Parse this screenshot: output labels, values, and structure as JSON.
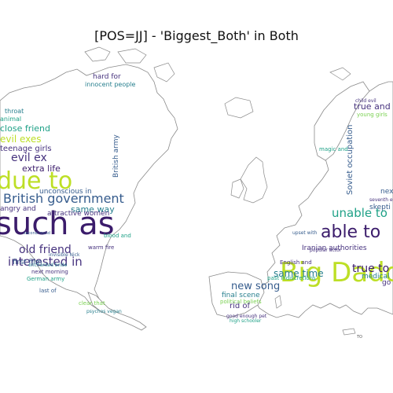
{
  "title": "[POS=JJ] - 'Biggest_Both' in Both",
  "palette": {
    "dark": "#3b1c6b",
    "purple": "#46327e",
    "blue": "#365c8d",
    "teal": "#277f8e",
    "green": "#1fa187",
    "lime": "#7ad151",
    "yellow": "#bddf26"
  },
  "america_words": [
    {
      "id": "such-as",
      "text": "such as",
      "color": "dark"
    },
    {
      "id": "due-to",
      "text": "due to",
      "color": "yellow"
    },
    {
      "id": "british-government",
      "text": "British government",
      "color": "blue"
    },
    {
      "id": "interested-in",
      "text": "interested in",
      "color": "purple"
    },
    {
      "id": "old-friend",
      "text": "old friend",
      "color": "purple"
    },
    {
      "id": "evil-ex",
      "text": "evil ex",
      "color": "purple"
    },
    {
      "id": "evil-exes",
      "text": "evil exes",
      "color": "yellow"
    },
    {
      "id": "extra-life",
      "text": "extra life",
      "color": "dark"
    },
    {
      "id": "teenage-girls",
      "text": "teenage girls",
      "color": "purple"
    },
    {
      "id": "same-way",
      "text": "same way",
      "color": "teal"
    },
    {
      "id": "attractive-women",
      "text": "attractive women",
      "color": "purple"
    },
    {
      "id": "unconscious-in",
      "text": "unconscious in",
      "color": "blue"
    },
    {
      "id": "close-friend",
      "text": "close friend",
      "color": "green"
    },
    {
      "id": "first-film",
      "text": "first film",
      "color": "blue"
    },
    {
      "id": "hard-for",
      "text": "hard for",
      "color": "purple"
    },
    {
      "id": "innocent-people",
      "text": "innocent people",
      "color": "teal"
    },
    {
      "id": "angry-and",
      "text": "angry and",
      "color": "purple"
    },
    {
      "id": "british-army",
      "text": "British army",
      "color": "blue"
    },
    {
      "id": "next-morning",
      "text": "next morning",
      "color": "purple"
    },
    {
      "id": "enchanted-bride",
      "text": "enchanted bride",
      "color": "teal"
    },
    {
      "id": "german-army",
      "text": "German army",
      "color": "green"
    },
    {
      "id": "last-of",
      "text": "last of",
      "color": "blue"
    },
    {
      "id": "clear-that",
      "text": "clear that",
      "color": "lime"
    },
    {
      "id": "psychos-vegan",
      "text": "psychos vegan",
      "color": "teal"
    },
    {
      "id": "warm-fire",
      "text": "warm fire",
      "color": "purple"
    },
    {
      "id": "animal",
      "text": "animal",
      "color": "green"
    },
    {
      "id": "throat",
      "text": "throat",
      "color": "teal"
    },
    {
      "id": "blood-and",
      "text": "blood and",
      "color": "green"
    },
    {
      "id": "invisible-nick",
      "text": "invisible Nick",
      "color": "blue"
    },
    {
      "id": "second-round",
      "text": "second round",
      "color": "blue"
    }
  ],
  "europe_words": [
    {
      "id": "big-daddy",
      "text": "Big Daddy",
      "color": "yellow"
    },
    {
      "id": "able-to",
      "text": "able to",
      "color": "dark"
    },
    {
      "id": "unable-to",
      "text": "unable to",
      "color": "green"
    },
    {
      "id": "new-song",
      "text": "new song",
      "color": "blue"
    },
    {
      "id": "same-time",
      "text": "same time",
      "color": "teal"
    },
    {
      "id": "true-to",
      "text": "true to",
      "color": "dark"
    },
    {
      "id": "true-and",
      "text": "true and",
      "color": "purple"
    },
    {
      "id": "iranian-authorities",
      "text": "Iranian authorities",
      "color": "purple"
    },
    {
      "id": "soviet-occupation",
      "text": "Soviet occupation",
      "color": "blue"
    },
    {
      "id": "final-scene",
      "text": "final scene",
      "color": "teal"
    },
    {
      "id": "rid-of",
      "text": "rid of",
      "color": "purple"
    },
    {
      "id": "medical",
      "text": "medical",
      "color": "teal"
    },
    {
      "id": "skepti",
      "text": "skepti",
      "color": "blue"
    },
    {
      "id": "next",
      "text": "next",
      "color": "blue"
    },
    {
      "id": "english-and",
      "text": "English and",
      "color": "purple"
    },
    {
      "id": "past-indiscretions",
      "text": "past indiscretions",
      "color": "green"
    },
    {
      "id": "political-beliefs",
      "text": "political beliefs",
      "color": "lime"
    },
    {
      "id": "good-enough-pet",
      "text": "good enough pet",
      "color": "purple"
    },
    {
      "id": "high-schooler",
      "text": "high schooler",
      "color": "green"
    },
    {
      "id": "young-girls",
      "text": "young girls",
      "color": "lime"
    },
    {
      "id": "child-evil",
      "text": "child evil",
      "color": "purple"
    },
    {
      "id": "magic-and",
      "text": "magic and",
      "color": "green"
    },
    {
      "id": "popular-actor",
      "text": "popular actor",
      "color": "purple"
    },
    {
      "id": "upset-with",
      "text": "upset with",
      "color": "blue"
    },
    {
      "id": "seventh-evil",
      "text": "seventh evil",
      "color": "purple"
    },
    {
      "id": "medical-go",
      "text": "go",
      "color": "purple"
    }
  ],
  "scale_label": "TO"
}
